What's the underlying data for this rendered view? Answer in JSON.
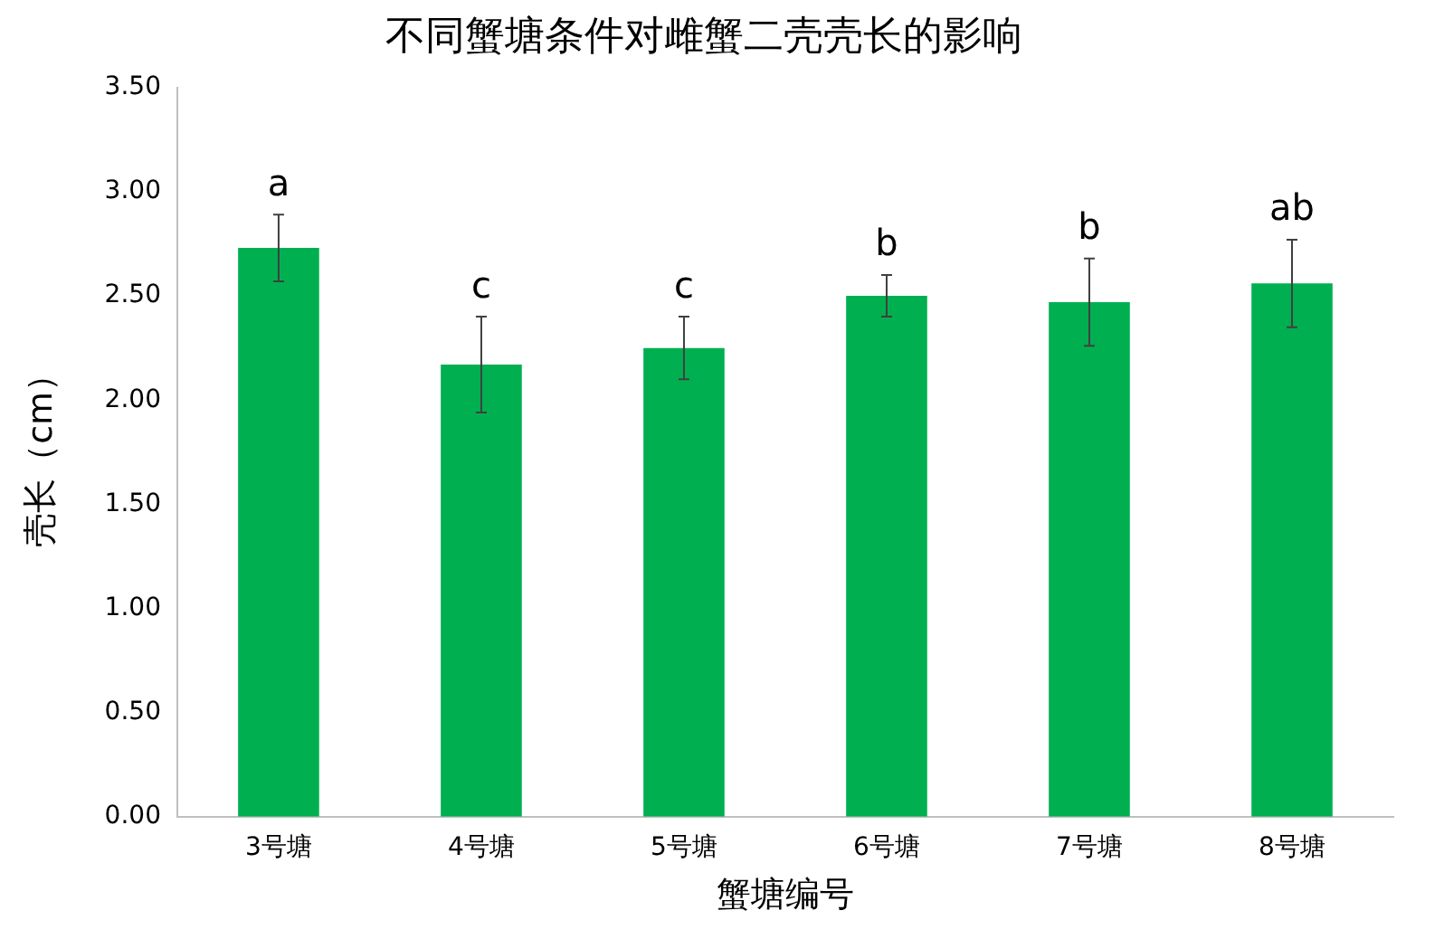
{
  "chart_data": {
    "type": "bar",
    "title": "不同蟹塘条件对雌蟹二壳壳长的影响",
    "xlabel": "蟹塘编号",
    "ylabel": "壳长（cm）",
    "categories": [
      "3号塘",
      "4号塘",
      "5号塘",
      "6号塘",
      "7号塘",
      "8号塘"
    ],
    "values": [
      2.73,
      2.17,
      2.25,
      2.5,
      2.47,
      2.56
    ],
    "errors": [
      0.16,
      0.23,
      0.15,
      0.1,
      0.21,
      0.21
    ],
    "color": "#00b050",
    "ylim": [
      0,
      3.5
    ],
    "yticks": [
      {
        "value": 0,
        "label": "0.00"
      },
      {
        "value": 0.5,
        "label": "0.50"
      },
      {
        "value": 1,
        "label": "1.00"
      },
      {
        "value": 1.5,
        "label": "1.50"
      },
      {
        "value": 2,
        "label": "2.00"
      },
      {
        "value": 2.5,
        "label": "2.50"
      },
      {
        "value": 3,
        "label": "3.00"
      },
      {
        "value": 3.5,
        "label": "3.50"
      }
    ],
    "grid": false,
    "legend": false,
    "annotations": [
      {
        "text": "a",
        "x": "3号塘",
        "y": 2.89
      },
      {
        "text": "c",
        "x": "4号塘",
        "y": 2.4
      },
      {
        "text": "c",
        "x": "5号塘",
        "y": 2.4
      },
      {
        "text": "b",
        "x": "6号塘",
        "y": 2.6
      },
      {
        "text": "b",
        "x": "7号塘",
        "y": 2.68
      },
      {
        "text": "ab",
        "x": "8号塘",
        "y": 2.77
      }
    ]
  }
}
